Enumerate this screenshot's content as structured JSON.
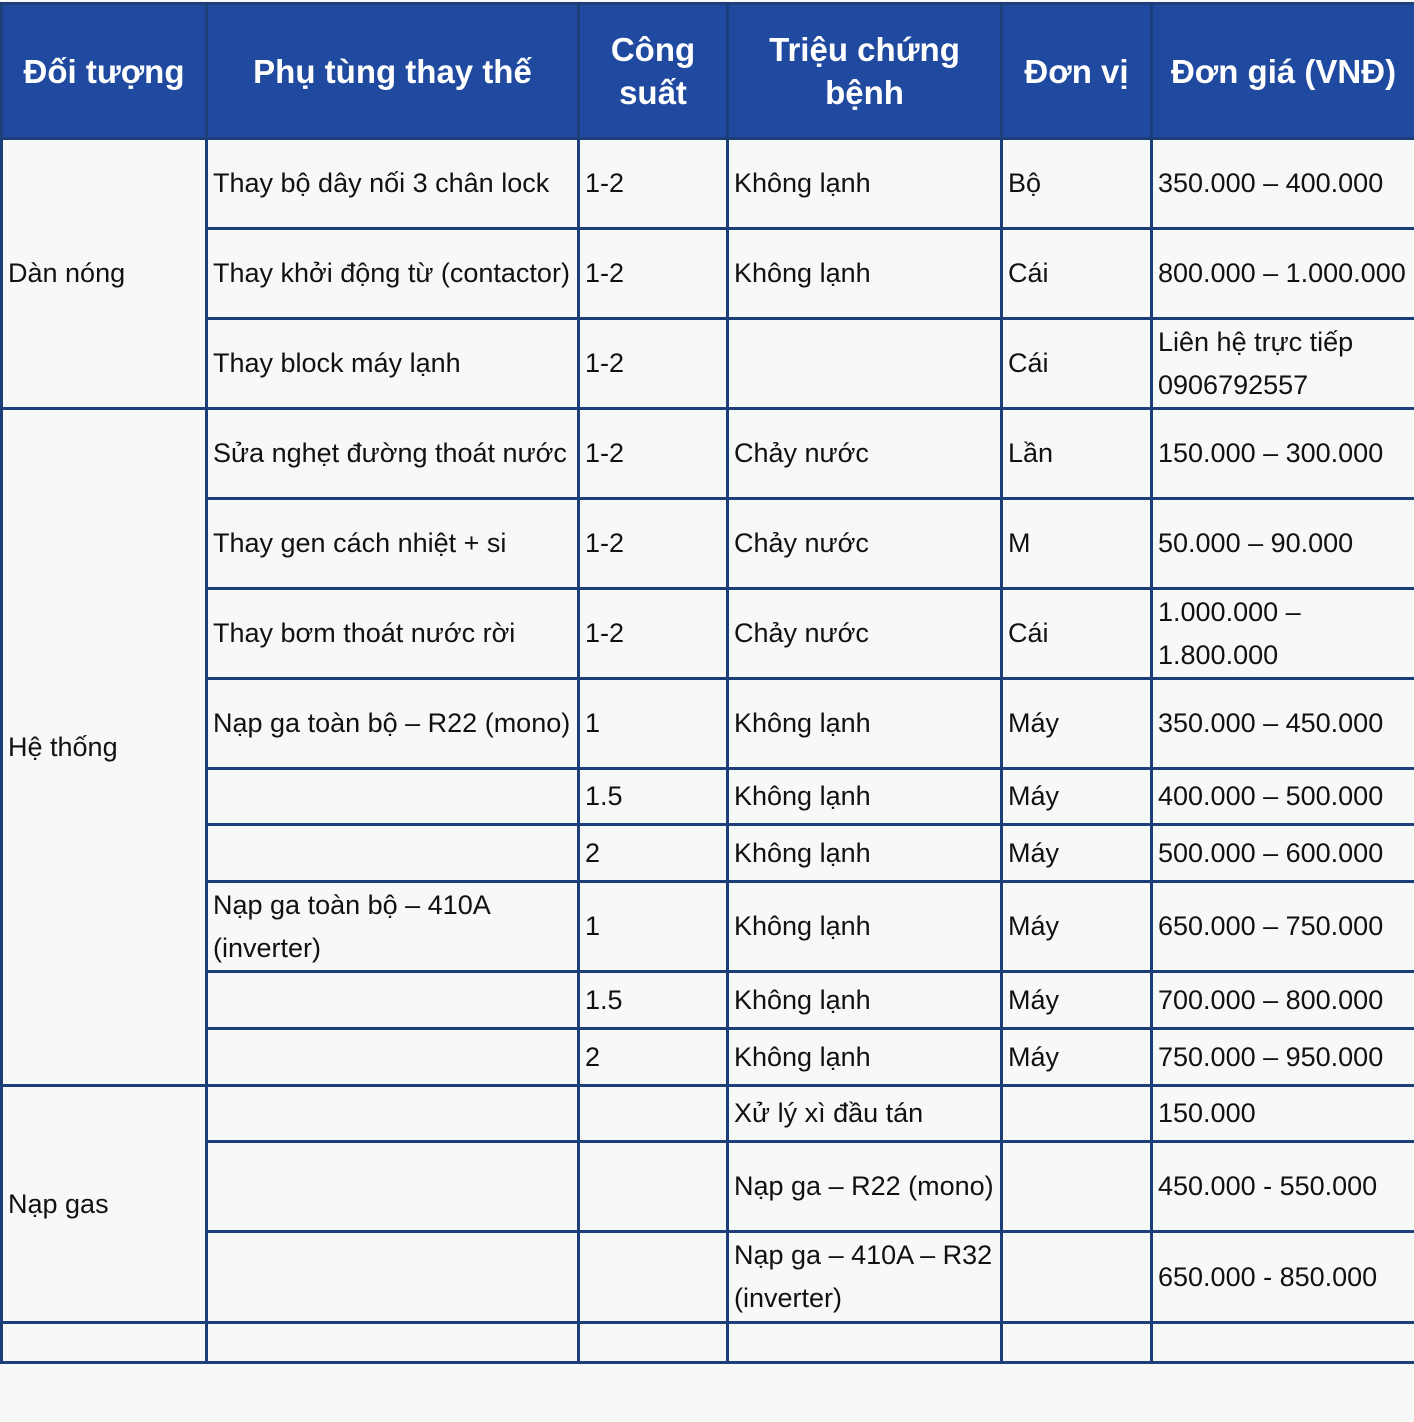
{
  "colors": {
    "header_bg": "#1f4aa0",
    "border": "#1c3f7a",
    "cell_bg": "#f7f8f8"
  },
  "headers": [
    "Đối tượng",
    "Phụ tùng thay thế",
    "Công suất",
    "Triệu chứng bệnh",
    "Đơn vị",
    "Đơn giá (VNĐ)"
  ],
  "groups": [
    {
      "name": "Dàn nóng",
      "rows": [
        [
          "Thay bộ dây nối 3 chân lock",
          "1-2",
          "Không lạnh",
          "Bộ",
          "350.000 – 400.000"
        ],
        [
          "Thay khởi động từ (contactor)",
          "1-2",
          "Không lạnh",
          "Cái",
          "800.000 – 1.000.000"
        ],
        [
          "Thay block máy lạnh",
          "1-2",
          "",
          "Cái",
          "Liên hệ trực tiếp 0906792557"
        ]
      ]
    },
    {
      "name": "Hệ thống",
      "rows": [
        [
          "Sửa nghẹt đường thoát nước",
          "1-2",
          "Chảy nước",
          "Lần",
          "150.000 – 300.000"
        ],
        [
          "Thay gen cách nhiệt + si",
          "1-2",
          "Chảy nước",
          "M",
          "50.000 – 90.000"
        ],
        [
          "Thay bơm thoát nước rời",
          "1-2",
          "Chảy nước",
          "Cái",
          "1.000.000 – 1.800.000"
        ],
        [
          "Nạp ga toàn bộ – R22 (mono)",
          "1",
          "Không lạnh",
          "Máy",
          "350.000 – 450.000"
        ],
        [
          "",
          "1.5",
          "Không lạnh",
          "Máy",
          "400.000 – 500.000"
        ],
        [
          "",
          "2",
          "Không lạnh",
          "Máy",
          "500.000 – 600.000"
        ],
        [
          "Nạp ga toàn bộ – 410A (inverter)",
          "1",
          "Không lạnh",
          "Máy",
          "650.000 – 750.000"
        ],
        [
          "",
          "1.5",
          "Không lạnh",
          "Máy",
          "700.000 – 800.000"
        ],
        [
          "",
          "2",
          "Không lạnh",
          "Máy",
          "750.000 – 950.000"
        ]
      ]
    },
    {
      "name": "Nạp gas",
      "rows": [
        [
          "",
          "",
          "Xử lý xì đầu tán",
          "",
          "150.000"
        ],
        [
          "",
          "",
          "Nạp ga – R22 (mono)",
          "",
          "450.000 - 550.000"
        ],
        [
          "",
          "",
          "Nạp ga – 410A – R32 (inverter)",
          "",
          "650.000 - 850.000"
        ]
      ]
    }
  ]
}
